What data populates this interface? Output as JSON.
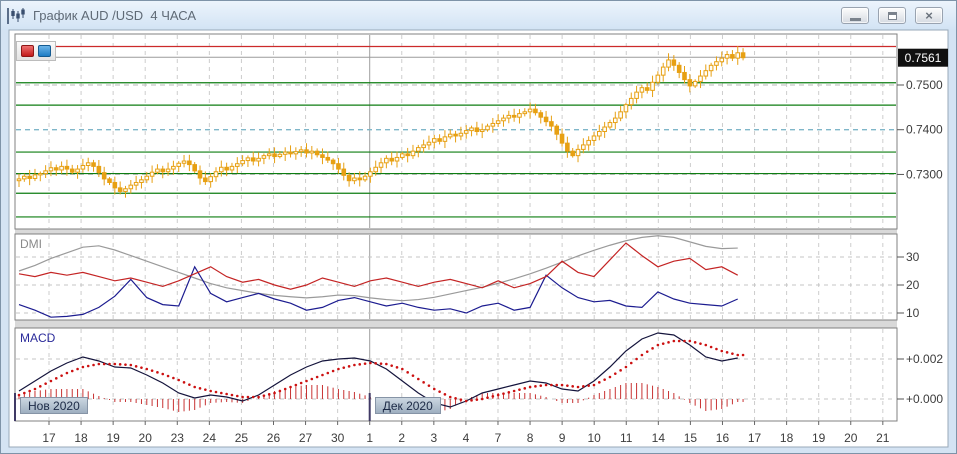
{
  "window": {
    "title": "График AUD /USD  4 ЧАСА",
    "controls": [
      {
        "name": "minimize"
      },
      {
        "name": "restore"
      },
      {
        "name": "close"
      }
    ]
  },
  "toolbar": {
    "buttons": [
      {
        "name": "red-marker",
        "color": "#c21a1a"
      },
      {
        "name": "blue-marker",
        "color": "#1d7cc4"
      }
    ]
  },
  "colors": {
    "candle": "#e7a013",
    "candle_hollow_fill": "#fffdf6",
    "green_level": "#0e7d12",
    "red_level": "#cc2a2a",
    "gray_level": "#9b9b9b",
    "grid_dash": "#cdcdcd",
    "price_dash_gray": "#b9b9b9",
    "price_dash_teal": "#7fb6c9",
    "dmi_adx": "#9a9a9a",
    "dmi_plus": "#c42424",
    "dmi_minus": "#1c1c90",
    "macd_line": "#14143c",
    "macd_signal": "#cc1111",
    "macd_hist": "#c83232",
    "axis_text": "#3c3c3c",
    "price_tag_bg": "#101010",
    "price_tag_text": "#ffffff",
    "month_line": "#9f9f9f",
    "month_tick": "#403a66"
  },
  "chart_data": {
    "type": "candlestick",
    "title": "AUD/USD 4-hour chart with DMI and MACD indicators",
    "price_panel": {
      "range": {
        "top": 0.7614,
        "bottom": 0.7178
      },
      "y_labels": [
        {
          "text": "0.7500",
          "price": 0.75
        },
        {
          "text": "0.7400",
          "price": 0.74
        },
        {
          "text": "0.7300",
          "price": 0.73
        }
      ],
      "price_tag": {
        "text": "0.7561",
        "price": 0.7561
      },
      "green_levels": [
        0.7505,
        0.7455,
        0.735,
        0.7302,
        0.7258,
        0.7205
      ],
      "red_line": 0.7586,
      "gray_line": 0.7562,
      "dashed_lines": [
        {
          "price": 0.75,
          "style": "gray"
        },
        {
          "price": 0.74,
          "style": "teal"
        },
        {
          "price": 0.73,
          "style": "gray"
        }
      ],
      "closes": [
        0.729,
        0.7296,
        0.7291,
        0.7299,
        0.7302,
        0.7308,
        0.7315,
        0.731,
        0.7318,
        0.7312,
        0.7305,
        0.7312,
        0.732,
        0.7326,
        0.7318,
        0.7304,
        0.729,
        0.7282,
        0.727,
        0.7262,
        0.7268,
        0.7276,
        0.7282,
        0.7288,
        0.7296,
        0.7305,
        0.7312,
        0.7306,
        0.7312,
        0.7318,
        0.7325,
        0.733,
        0.7322,
        0.7308,
        0.7292,
        0.7284,
        0.7295,
        0.7306,
        0.7316,
        0.731,
        0.7318,
        0.7324,
        0.7331,
        0.7337,
        0.733,
        0.7336,
        0.7342,
        0.7346,
        0.734,
        0.7345,
        0.735,
        0.7346,
        0.7351,
        0.7355,
        0.7348,
        0.7352,
        0.7344,
        0.7338,
        0.7332,
        0.7324,
        0.7312,
        0.7298,
        0.7286,
        0.7292,
        0.7288,
        0.7296,
        0.7306,
        0.7316,
        0.7326,
        0.7336,
        0.733,
        0.7338,
        0.7346,
        0.7342,
        0.7352,
        0.736,
        0.7366,
        0.7372,
        0.738,
        0.7374,
        0.7384,
        0.739,
        0.7386,
        0.7392,
        0.7398,
        0.7404,
        0.7396,
        0.74,
        0.7408,
        0.7414,
        0.742,
        0.7426,
        0.7432,
        0.7428,
        0.7436,
        0.744,
        0.7446,
        0.7438,
        0.7428,
        0.7418,
        0.7408,
        0.739,
        0.737,
        0.7352,
        0.7342,
        0.7356,
        0.7366,
        0.7376,
        0.7386,
        0.7396,
        0.7406,
        0.7416,
        0.7426,
        0.744,
        0.7456,
        0.747,
        0.7484,
        0.7494,
        0.7488,
        0.7506,
        0.7522,
        0.754,
        0.7556,
        0.7544,
        0.7528,
        0.7512,
        0.7498,
        0.7508,
        0.752,
        0.7532,
        0.7544,
        0.7552,
        0.756,
        0.7568,
        0.756,
        0.7572,
        0.7561
      ]
    },
    "dmi_panel": {
      "label": "DMI",
      "y_labels": [
        {
          "text": "30",
          "value": 30
        },
        {
          "text": "20",
          "value": 20
        },
        {
          "text": "10",
          "value": 10
        }
      ],
      "sample_step": 3,
      "series": {
        "adx": [
          25,
          27,
          29.5,
          31.5,
          33.5,
          34,
          32.5,
          30.5,
          28.5,
          26.5,
          24.5,
          22.5,
          20.5,
          19,
          18,
          17,
          16.3,
          15.8,
          15.4,
          15.8,
          16.4,
          16.2,
          15.4,
          14.8,
          14.4,
          14.8,
          15.6,
          16.8,
          18,
          19.2,
          20.6,
          22.2,
          24,
          26,
          28.2,
          30.4,
          32.4,
          34.2,
          35.8,
          37,
          37.6,
          37,
          35.4,
          33.8,
          33,
          33.2
        ],
        "plus_di": [
          24,
          23,
          24.5,
          23.5,
          24.5,
          23,
          21.5,
          22.5,
          21,
          19.5,
          21.5,
          24,
          26.5,
          23,
          21,
          22,
          20,
          18.5,
          20,
          22.5,
          21,
          19.5,
          21.5,
          22.5,
          21,
          19.5,
          21,
          22,
          20.5,
          19,
          21.5,
          19,
          20.5,
          23,
          28.5,
          24.5,
          23,
          29,
          35,
          30.5,
          26.5,
          28.5,
          29.5,
          25.5,
          26.5,
          23.5
        ],
        "minus_di": [
          13,
          11,
          8.5,
          8.8,
          9.5,
          12,
          16,
          22,
          15.5,
          13,
          12.5,
          26.5,
          17,
          14,
          15.5,
          17,
          15,
          13.5,
          11,
          12,
          14.5,
          15.5,
          14,
          12.5,
          13.5,
          12,
          11,
          11.5,
          10,
          12.5,
          13.5,
          11,
          12,
          23.5,
          19,
          15.5,
          14,
          14.5,
          12.5,
          12,
          17.5,
          15,
          13.5,
          13,
          12.5,
          15
        ]
      }
    },
    "macd_panel": {
      "label": "MACD",
      "y_labels": [
        {
          "text": "+0.002",
          "value": 0.002
        },
        {
          "text": "+0.000",
          "value": 0.0
        }
      ],
      "sample_step": 3,
      "series": {
        "macd": [
          0.0004,
          0.0009,
          0.0014,
          0.0018,
          0.0021,
          0.0019,
          0.0016,
          0.00155,
          0.0012,
          0.0008,
          0.0003,
          5e-05,
          0.0002,
          0.0001,
          -0.0001,
          0.0002,
          0.0007,
          0.0012,
          0.0016,
          0.0019,
          0.002,
          0.00205,
          0.0019,
          0.0015,
          0.0009,
          0.0003,
          -0.0002,
          -0.0004,
          -0.0001,
          0.0003,
          0.0005,
          0.0007,
          0.0009,
          0.0008,
          0.0005,
          0.0004,
          0.0009,
          0.0016,
          0.0024,
          0.003,
          0.0033,
          0.0032,
          0.0027,
          0.0021,
          0.0019,
          0.00205
        ],
        "signal": [
          0.0002,
          0.0005,
          0.0009,
          0.0013,
          0.0016,
          0.00175,
          0.00175,
          0.0017,
          0.0015,
          0.00125,
          0.00095,
          0.0006,
          0.0004,
          0.00025,
          0.0001,
          0.0001,
          0.0003,
          0.0006,
          0.0009,
          0.0012,
          0.0015,
          0.0017,
          0.0018,
          0.00175,
          0.0015,
          0.001,
          0.0005,
          0.0001,
          -0.0001,
          0,
          0.0002,
          0.0004,
          0.0006,
          0.0007,
          0.0007,
          0.0006,
          0.0007,
          0.0011,
          0.0016,
          0.0022,
          0.0027,
          0.0029,
          0.0029,
          0.0027,
          0.0024,
          0.0022
        ]
      }
    },
    "x_axis": {
      "day_labels": [
        "17",
        "18",
        "19",
        "20",
        "23",
        "24",
        "25",
        "26",
        "27",
        "30",
        "1",
        "2",
        "3",
        "4",
        "7",
        "8",
        "9",
        "10",
        "11",
        "14",
        "15",
        "16",
        "17",
        "18",
        "19",
        "20",
        "21"
      ],
      "month_boundary_day_index": 10,
      "months": [
        {
          "label": "Нов 2020",
          "position": "left-edge"
        },
        {
          "label": "Дек 2020",
          "day_index": 10
        }
      ]
    }
  }
}
